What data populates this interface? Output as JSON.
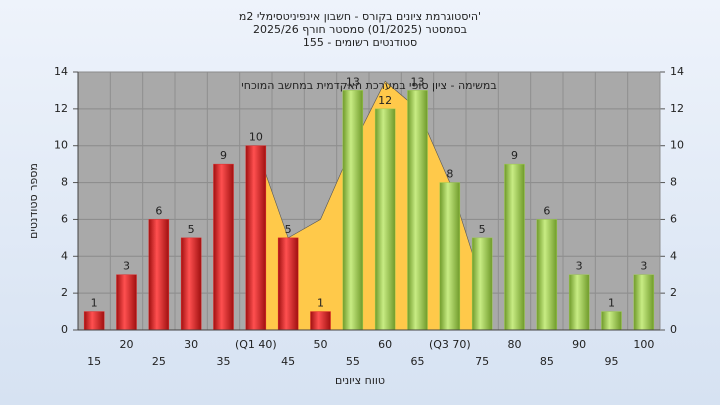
{
  "chart_data": {
    "type": "bar",
    "title": [
      "היסטוגרמת ציונים בקורס - חשבון אינפיניטסימלי 2מ'",
      "בסמסטר (01/2025) סמסטר חורף 2025/26",
      "סטודנטים רשומים - 155"
    ],
    "annotation": "במשימה - ציון סופי במערכת האקדמית במחשב המוכחי",
    "x_label": "טווח ציונים",
    "y_label": "מספר סטודנטים",
    "categories": [
      "15",
      "20",
      "25",
      "30",
      "35",
      "(Q1 40)",
      "45",
      "50",
      "55",
      "60",
      "65",
      "(Q3 70)",
      "75",
      "80",
      "85",
      "90",
      "95",
      "100"
    ],
    "values": [
      1,
      3,
      6,
      5,
      9,
      10,
      5,
      1,
      13,
      12,
      13,
      8,
      5,
      9,
      6,
      3,
      1,
      3
    ],
    "colors": [
      "#e02828",
      "#e02828",
      "#e02828",
      "#e02828",
      "#e02828",
      "#e02828",
      "#e02828",
      "#e02828",
      "#9ccc4c",
      "#9ccc4c",
      "#9ccc4c",
      "#9ccc4c",
      "#9ccc4c",
      "#9ccc4c",
      "#9ccc4c",
      "#9ccc4c",
      "#9ccc4c",
      "#9ccc4c"
    ],
    "area": {
      "color": "#ffc94a",
      "values": [
        null,
        null,
        null,
        null,
        null,
        10,
        5,
        6,
        10,
        13.5,
        12,
        8,
        2.5,
        null,
        null,
        null,
        null,
        null
      ]
    },
    "ylim": [
      0,
      14
    ],
    "yticks": [
      0,
      2,
      4,
      6,
      8,
      10,
      12,
      14
    ],
    "y2lim": [
      0,
      14
    ],
    "y2ticks": [
      0,
      2,
      4,
      6,
      8,
      10,
      12,
      14
    ],
    "grid": true
  }
}
